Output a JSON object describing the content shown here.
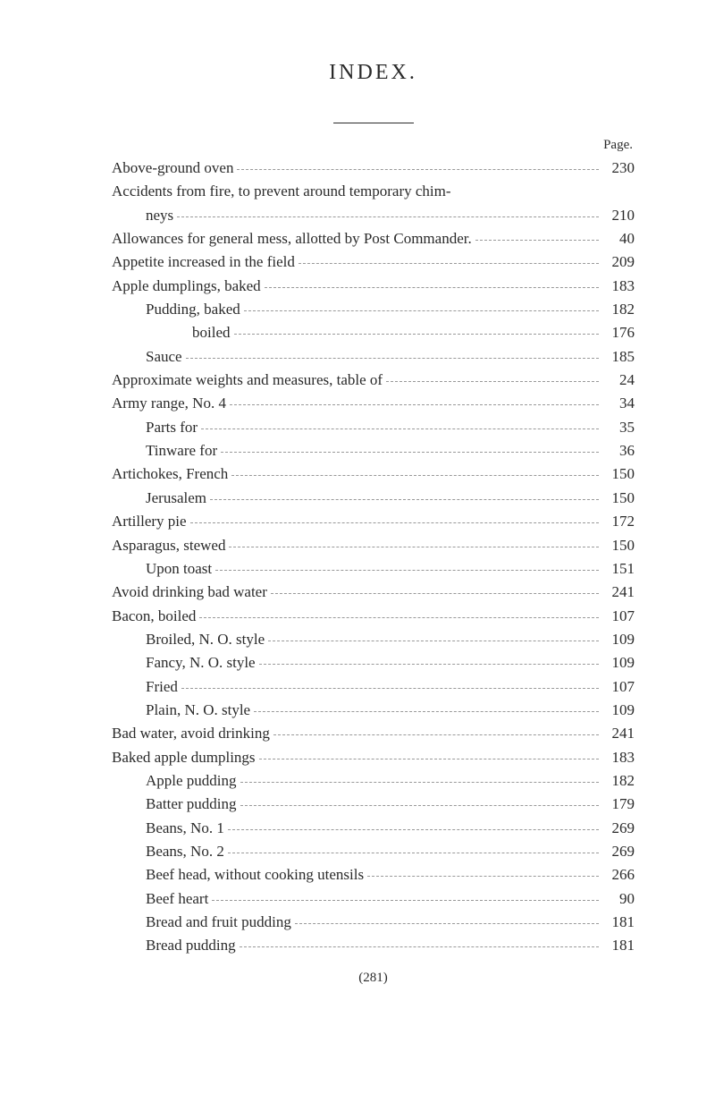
{
  "title": "INDEX.",
  "page_label": "Page.",
  "footer": "(281)",
  "entries": [
    {
      "text": "Above-ground oven",
      "page": "230",
      "indent": 0
    },
    {
      "text": "Accidents from fire, to prevent around temporary chim-",
      "page": "",
      "indent": 0,
      "nodots": true
    },
    {
      "text": "neys",
      "page": "210",
      "indent": 0,
      "cont": true
    },
    {
      "text": "Allowances for general mess, allotted by Post Commander.",
      "page": "40",
      "indent": 0
    },
    {
      "text": "Appetite increased in the field",
      "page": "209",
      "indent": 0
    },
    {
      "text": "Apple dumplings, baked",
      "page": "183",
      "indent": 0
    },
    {
      "text": "Pudding, baked",
      "page": "182",
      "indent": 1
    },
    {
      "text": "boiled",
      "page": "176",
      "indent": 2
    },
    {
      "text": "Sauce",
      "page": "185",
      "indent": 1
    },
    {
      "text": "Approximate weights and measures, table of",
      "page": "24",
      "indent": 0
    },
    {
      "text": "Army range, No. 4",
      "page": "34",
      "indent": 0
    },
    {
      "text": "Parts for",
      "page": "35",
      "indent": 1
    },
    {
      "text": "Tinware for",
      "page": "36",
      "indent": 1
    },
    {
      "text": "Artichokes, French",
      "page": "150",
      "indent": 0
    },
    {
      "text": "Jerusalem",
      "page": "150",
      "indent": 1
    },
    {
      "text": "Artillery pie",
      "page": "172",
      "indent": 0
    },
    {
      "text": "Asparagus, stewed",
      "page": "150",
      "indent": 0
    },
    {
      "text": "Upon toast",
      "page": "151",
      "indent": 1
    },
    {
      "text": "Avoid drinking bad water",
      "page": "241",
      "indent": 0
    },
    {
      "text": "Bacon, boiled",
      "page": "107",
      "indent": 0
    },
    {
      "text": "Broiled, N. O. style",
      "page": "109",
      "indent": 1
    },
    {
      "text": "Fancy, N. O. style",
      "page": "109",
      "indent": 1
    },
    {
      "text": "Fried",
      "page": "107",
      "indent": 1
    },
    {
      "text": "Plain, N. O. style",
      "page": "109",
      "indent": 1
    },
    {
      "text": "Bad water, avoid drinking",
      "page": "241",
      "indent": 0
    },
    {
      "text": "Baked apple dumplings",
      "page": "183",
      "indent": 0
    },
    {
      "text": "Apple pudding",
      "page": "182",
      "indent": 1
    },
    {
      "text": "Batter pudding",
      "page": "179",
      "indent": 1
    },
    {
      "text": "Beans, No. 1",
      "page": "269",
      "indent": 1
    },
    {
      "text": "Beans, No. 2",
      "page": "269",
      "indent": 1
    },
    {
      "text": "Beef head, without cooking utensils",
      "page": "266",
      "indent": 1
    },
    {
      "text": "Beef heart",
      "page": "90",
      "indent": 1
    },
    {
      "text": "Bread and fruit pudding",
      "page": "181",
      "indent": 1
    },
    {
      "text": "Bread pudding",
      "page": "181",
      "indent": 1
    }
  ]
}
